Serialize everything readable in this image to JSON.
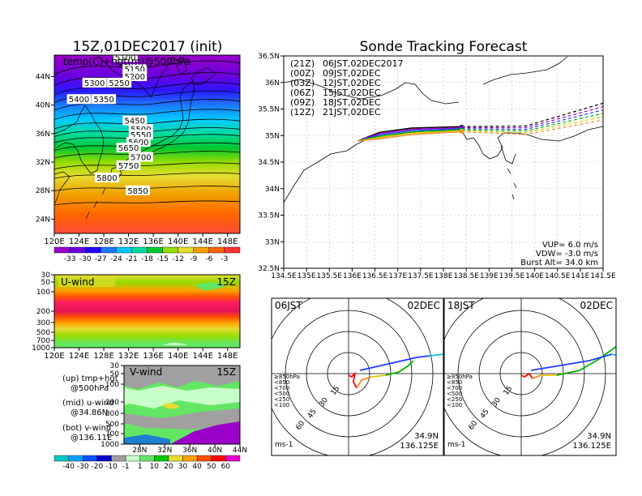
{
  "chart_data": [
    {
      "type": "heatmap",
      "title": "15Z,01DEC2017 (init)",
      "subtitle": "temp(C)+hgt(m)@500hPa",
      "x_ticks": [
        "120E",
        "124E",
        "128E",
        "132E",
        "136E",
        "140E",
        "144E",
        "148E"
      ],
      "y_ticks": [
        "24N",
        "28N",
        "32N",
        "36N",
        "40N",
        "44N"
      ],
      "xlim": [
        120,
        150
      ],
      "ylim": [
        22,
        47
      ],
      "colorbar_ticks": [
        "-33",
        "-30",
        "-27",
        "-24",
        "-21",
        "-18",
        "-15",
        "-12",
        "-9",
        "-6",
        "-3"
      ],
      "colorbar_colors": [
        "#9a00c8",
        "#6a00e0",
        "#2000ff",
        "#1e78ff",
        "#00c8ff",
        "#00dca0",
        "#00c832",
        "#96dc00",
        "#e6dc32",
        "#f0a000",
        "#ff6400",
        "#ff3232"
      ],
      "contour_labels": [
        {
          "value": "5100",
          "lon": 131.5,
          "lat": 46.4
        },
        {
          "value": "5150",
          "lon": 133.0,
          "lat": 44.7
        },
        {
          "value": "5200",
          "lon": 133.0,
          "lat": 43.7
        },
        {
          "value": "5300",
          "lon": 126.5,
          "lat": 42.8
        },
        {
          "value": "5250",
          "lon": 130.5,
          "lat": 42.8
        },
        {
          "value": "5400",
          "lon": 124.0,
          "lat": 40.5
        },
        {
          "value": "5350",
          "lon": 128.0,
          "lat": 40.5
        },
        {
          "value": "5450",
          "lon": 133.0,
          "lat": 37.5
        },
        {
          "value": "5500",
          "lon": 134.0,
          "lat": 36.3
        },
        {
          "value": "5550",
          "lon": 134.0,
          "lat": 35.5
        },
        {
          "value": "5600",
          "lon": 133.6,
          "lat": 34.5
        },
        {
          "value": "5650",
          "lon": 132.0,
          "lat": 33.7
        },
        {
          "value": "5700",
          "lon": 134.0,
          "lat": 32.4
        },
        {
          "value": "5750",
          "lon": 132.0,
          "lat": 31.2
        },
        {
          "value": "5800",
          "lon": 128.5,
          "lat": 29.5
        },
        {
          "value": "5850",
          "lon": 133.5,
          "lat": 27.7
        }
      ]
    },
    {
      "type": "heatmap",
      "title": "U-wind",
      "time_label": "15Z",
      "x_ticks": [
        "120E",
        "124E",
        "128E",
        "132E",
        "136E",
        "140E",
        "144E",
        "148E"
      ],
      "y_ticks": [
        "30",
        "50",
        "100",
        "200",
        "300",
        "500",
        "700",
        "1000"
      ],
      "y_axis": "pressure (hPa), log"
    },
    {
      "type": "heatmap",
      "title": "V-wind",
      "time_label": "15Z",
      "x_ticks": [
        "28N",
        "32N",
        "36N",
        "40N",
        "44N"
      ],
      "y_ticks": [
        "30",
        "50",
        "100",
        "200",
        "300",
        "500",
        "700",
        "1000"
      ],
      "colorbar_ticks": [
        "-40",
        "-30",
        "-20",
        "-10",
        "-1",
        "1",
        "10",
        "20",
        "30",
        "40",
        "50",
        "60"
      ],
      "colorbar_colors": [
        "#00c8c8",
        "#00a0ff",
        "#0050ff",
        "#0000c8",
        "#a0a0a0",
        "#c8ffc8",
        "#64e664",
        "#00c800",
        "#e6dc32",
        "#ffa000",
        "#ff5000",
        "#ff0000",
        "#e600c8"
      ]
    },
    {
      "type": "line",
      "title": "Sonde Tracking Forecast",
      "x_ticks": [
        "134.5E",
        "135E",
        "135.5E",
        "136E",
        "136.5E",
        "137E",
        "137.5E",
        "138E",
        "138.5E",
        "139E",
        "139.5E",
        "140E",
        "140.5E",
        "141E",
        "141.5E"
      ],
      "y_ticks": [
        "32.5N",
        "33N",
        "33.5N",
        "34N",
        "34.5N",
        "35N",
        "35.5N",
        "36N",
        "36.5N"
      ],
      "xlim": [
        134.5,
        141.5
      ],
      "ylim": [
        32.5,
        36.5
      ],
      "legend": [
        {
          "launch": "(21Z)",
          "label": "06JST,02DEC2017",
          "color": "#000000"
        },
        {
          "launch": "(00Z)",
          "label": "09JST,02DEC",
          "color": "#a000c8"
        },
        {
          "launch": "(03Z)",
          "label": "12JST,02DEC",
          "color": "#1e3cff"
        },
        {
          "launch": "(06Z)",
          "label": "15JST,02DEC",
          "color": "#00b400"
        },
        {
          "launch": "(09Z)",
          "label": "18JST,02DEC",
          "color": "#e6c800"
        },
        {
          "launch": "(12Z)",
          "label": "21JST,02DEC",
          "color": "#f08c28"
        }
      ],
      "start": {
        "lon": 136.125,
        "lat": 34.9
      },
      "params": [
        "VUP=  6.0 m/s",
        "VDW= -3.0 m/s",
        "Burst Alt= 34.0 km"
      ]
    },
    {
      "type": "line",
      "title": "06JST",
      "date": "02DEC",
      "rings": [
        "15",
        "30",
        "45",
        "60"
      ],
      "unit": "ms-1",
      "location": [
        "34.9N",
        "136.125E"
      ],
      "pressure_legend": [
        "≥850hPa",
        "<850",
        "<700",
        "<500",
        "<250",
        "<100"
      ]
    },
    {
      "type": "line",
      "title": "18JST",
      "date": "02DEC",
      "rings": [
        "15",
        "30",
        "45",
        "60"
      ],
      "unit": "ms-1",
      "location": [
        "34.9N",
        "136.125E"
      ],
      "pressure_legend": [
        "≥850hPa",
        "<850",
        "<700",
        "<500",
        "<250",
        "<100"
      ]
    }
  ],
  "notes": {
    "lines": [
      "(up) tmp+hgt",
      "@500hPa",
      "(mid) u-wind",
      "@34.86N",
      "(bot) v-wind",
      "@136.11E"
    ]
  }
}
